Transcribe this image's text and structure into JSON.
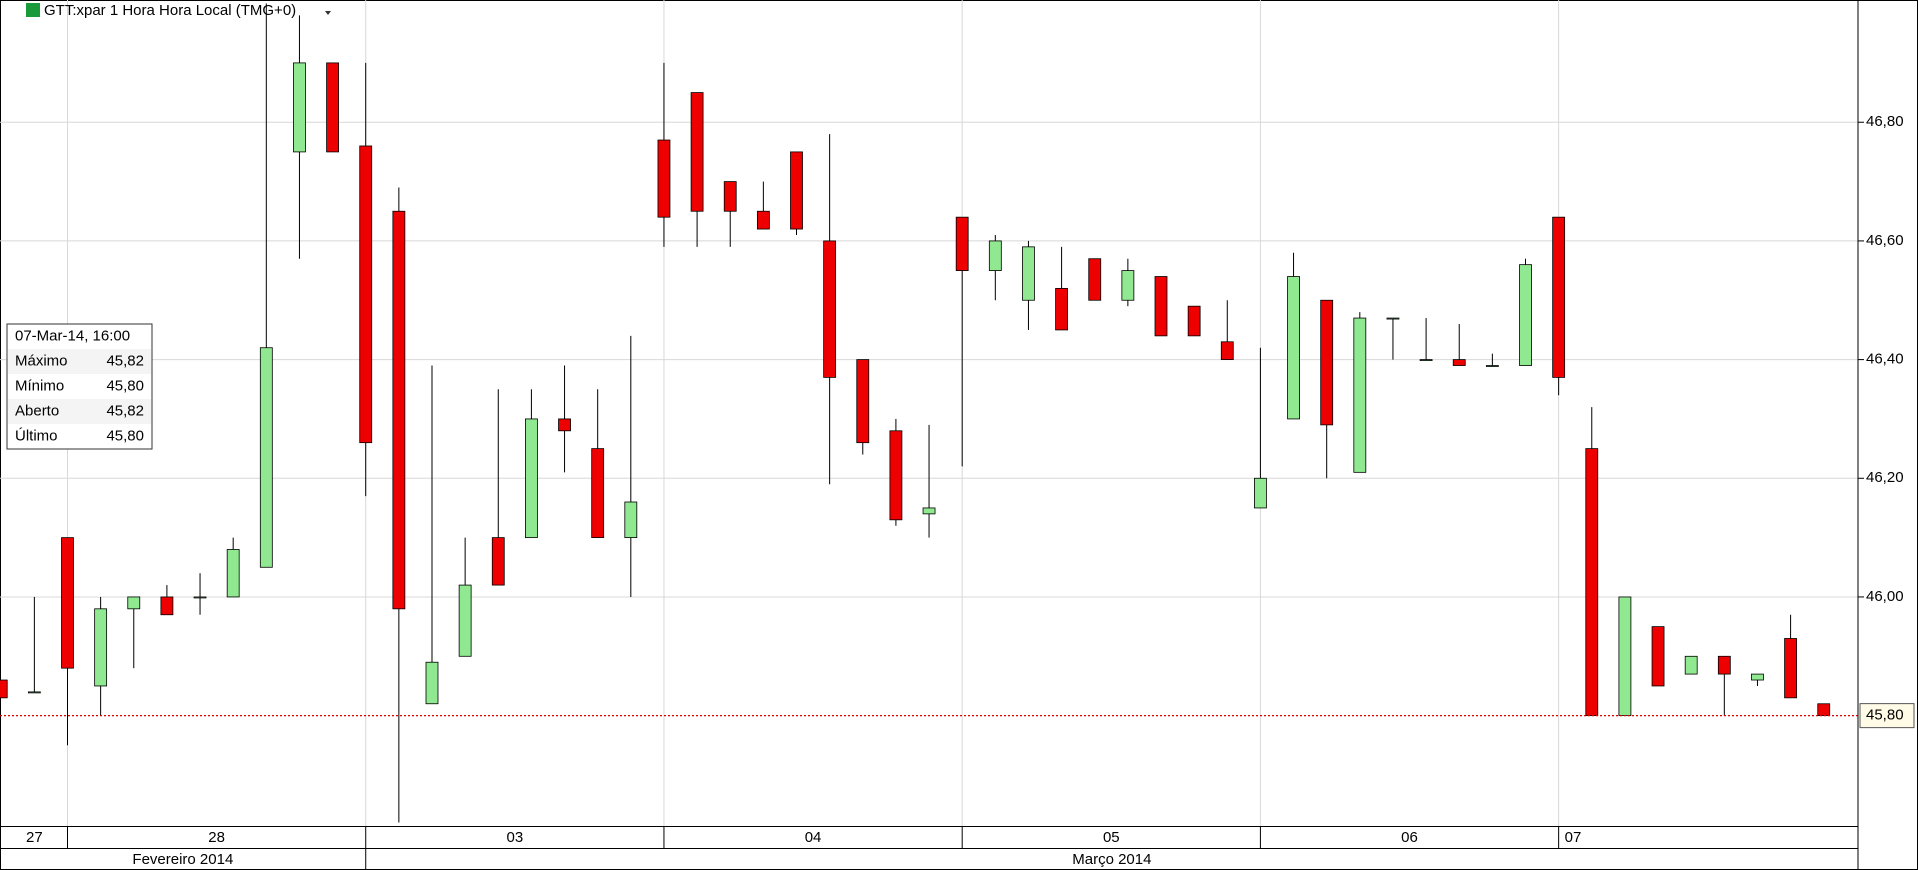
{
  "chart_data": {
    "type": "candlestick",
    "title": "GTT:xpar 1 Hora Hora Local (TMG+0)",
    "up_color": "#90e890",
    "down_color": "#ee0000",
    "grid": true,
    "categories": [
      null,
      null,
      null,
      null,
      null,
      null,
      null,
      null,
      null,
      null,
      null,
      null,
      null,
      null,
      null,
      null,
      null,
      null,
      null,
      null,
      null,
      null,
      null,
      null,
      null,
      null,
      null,
      null,
      null,
      null,
      null,
      null,
      null,
      null,
      null,
      null,
      null,
      null,
      null,
      null,
      null,
      null,
      null,
      null,
      null,
      null,
      null,
      null,
      null,
      null,
      null,
      null,
      null,
      null,
      null,
      null
    ],
    "open": [
      45.86,
      45.84,
      46.1,
      45.85,
      45.98,
      46.0,
      46.0,
      46.0,
      46.05,
      46.75,
      46.9,
      46.76,
      46.65,
      45.82,
      45.9,
      46.1,
      46.1,
      46.3,
      46.25,
      46.1,
      46.77,
      46.85,
      46.7,
      46.65,
      46.75,
      46.6,
      46.4,
      46.28,
      46.14,
      46.64,
      46.55,
      46.5,
      46.52,
      46.57,
      46.5,
      46.54,
      46.49,
      46.43,
      46.15,
      46.3,
      46.5,
      46.21,
      46.47,
      46.4,
      46.4,
      46.39,
      46.39,
      46.64,
      46.25,
      45.8,
      45.95,
      45.87,
      45.9,
      45.86,
      45.93,
      45.82
    ],
    "high": [
      45.86,
      46.0,
      46.1,
      46.0,
      46.0,
      46.02,
      46.04,
      46.1,
      47.0,
      46.98,
      46.9,
      46.9,
      46.69,
      46.39,
      46.1,
      46.35,
      46.35,
      46.39,
      46.35,
      46.44,
      46.9,
      46.85,
      46.7,
      46.7,
      46.75,
      46.78,
      46.4,
      46.3,
      46.29,
      46.64,
      46.61,
      46.6,
      46.59,
      46.57,
      46.57,
      46.54,
      46.49,
      46.5,
      46.42,
      46.58,
      46.5,
      46.48,
      46.47,
      46.47,
      46.46,
      46.41,
      46.57,
      46.64,
      46.32,
      46.0,
      45.95,
      45.9,
      45.9,
      45.87,
      45.97,
      45.82
    ],
    "low": [
      45.83,
      45.84,
      45.75,
      45.8,
      45.88,
      45.97,
      45.97,
      46.0,
      46.05,
      46.57,
      46.75,
      46.17,
      45.62,
      45.82,
      45.9,
      46.02,
      46.1,
      46.21,
      46.1,
      46.0,
      46.59,
      46.59,
      46.59,
      46.62,
      46.61,
      46.19,
      46.24,
      46.12,
      46.1,
      46.22,
      46.5,
      46.45,
      46.45,
      46.5,
      46.49,
      46.44,
      46.44,
      46.4,
      46.15,
      46.3,
      46.2,
      46.21,
      46.4,
      46.4,
      46.39,
      46.39,
      46.39,
      46.34,
      45.8,
      45.8,
      45.85,
      45.87,
      45.8,
      45.85,
      45.83,
      45.8
    ],
    "close": [
      45.83,
      45.84,
      45.88,
      45.98,
      46.0,
      45.97,
      46.0,
      46.08,
      46.42,
      46.9,
      46.75,
      46.26,
      45.98,
      45.89,
      46.02,
      46.02,
      46.3,
      46.28,
      46.1,
      46.16,
      46.64,
      46.65,
      46.65,
      46.62,
      46.62,
      46.37,
      46.26,
      46.13,
      46.15,
      46.55,
      46.6,
      46.59,
      46.45,
      46.5,
      46.55,
      46.44,
      46.44,
      46.4,
      46.2,
      46.54,
      46.29,
      46.47,
      46.47,
      46.4,
      46.39,
      46.39,
      46.56,
      46.37,
      45.8,
      46.0,
      45.85,
      45.9,
      45.87,
      45.87,
      45.83,
      45.8
    ],
    "ylim": [
      45.614,
      47.006
    ],
    "yticks": [
      {
        "value": 46.0,
        "label": "46,00"
      },
      {
        "value": 46.2,
        "label": "46,20"
      },
      {
        "value": 46.4,
        "label": "46,40"
      },
      {
        "value": 46.6,
        "label": "46,60"
      },
      {
        "value": 46.8,
        "label": "46,80"
      }
    ],
    "last_price": {
      "value": 45.8,
      "label": "45,80"
    },
    "days": [
      {
        "label": "27",
        "first": 0
      },
      {
        "label": "28",
        "first": 2
      },
      {
        "label": "03",
        "first": 11
      },
      {
        "label": "04",
        "first": 20
      },
      {
        "label": "05",
        "first": 29
      },
      {
        "label": "06",
        "first": 38
      },
      {
        "label": "07",
        "first": 47
      }
    ],
    "months": [
      {
        "label": "Fevereiro 2014",
        "first_day": 0
      },
      {
        "label": "Março 2014",
        "first_day": 2
      }
    ],
    "tooltip": {
      "title": "07-Mar-14, 16:00",
      "rows": [
        {
          "label": "Máximo",
          "value": "45,82"
        },
        {
          "label": "Mínimo",
          "value": "45,80"
        },
        {
          "label": "Aberto",
          "value": "45,82"
        },
        {
          "label": "Último",
          "value": "45,80"
        }
      ]
    }
  }
}
